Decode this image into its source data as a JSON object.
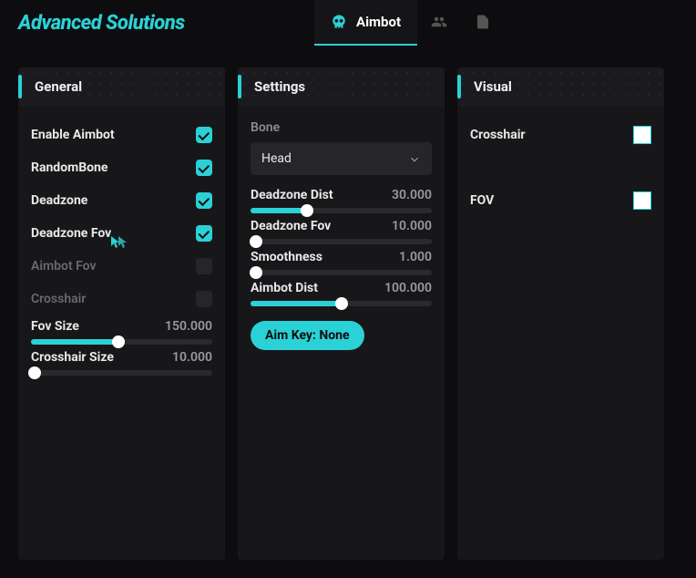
{
  "brand": "Advanced Solutions",
  "accent": "#2ad1d6",
  "tabs": {
    "active_label": "Aimbot"
  },
  "panels": {
    "general": {
      "title": "General",
      "checks": [
        {
          "label": "Enable Aimbot",
          "checked": true,
          "disabled": false
        },
        {
          "label": "RandomBone",
          "checked": true,
          "disabled": false
        },
        {
          "label": "Deadzone",
          "checked": true,
          "disabled": false
        },
        {
          "label": "Deadzone Fov",
          "checked": true,
          "disabled": false
        },
        {
          "label": "Aimbot Fov",
          "checked": false,
          "disabled": true
        },
        {
          "label": "Crosshair",
          "checked": false,
          "disabled": true
        }
      ],
      "sliders": [
        {
          "label": "Fov Size",
          "value": "150.000",
          "fill_pct": 48
        },
        {
          "label": "Crosshair Size",
          "value": "10.000",
          "fill_pct": 2
        }
      ]
    },
    "settings": {
      "title": "Settings",
      "bone_label": "Bone",
      "bone_value": "Head",
      "sliders": [
        {
          "label": "Deadzone Dist",
          "value": "30.000",
          "fill_pct": 31
        },
        {
          "label": "Deadzone Fov",
          "value": "10.000",
          "fill_pct": 3
        },
        {
          "label": "Smoothness",
          "value": "1.000",
          "fill_pct": 3
        },
        {
          "label": "Aimbot Dist",
          "value": "100.000",
          "fill_pct": 50
        }
      ],
      "button": "Aim Key: None"
    },
    "visual": {
      "title": "Visual",
      "items": [
        {
          "label": "Crosshair",
          "color": "#ffffff"
        },
        {
          "label": "FOV",
          "color": "#ffffff"
        }
      ]
    }
  }
}
